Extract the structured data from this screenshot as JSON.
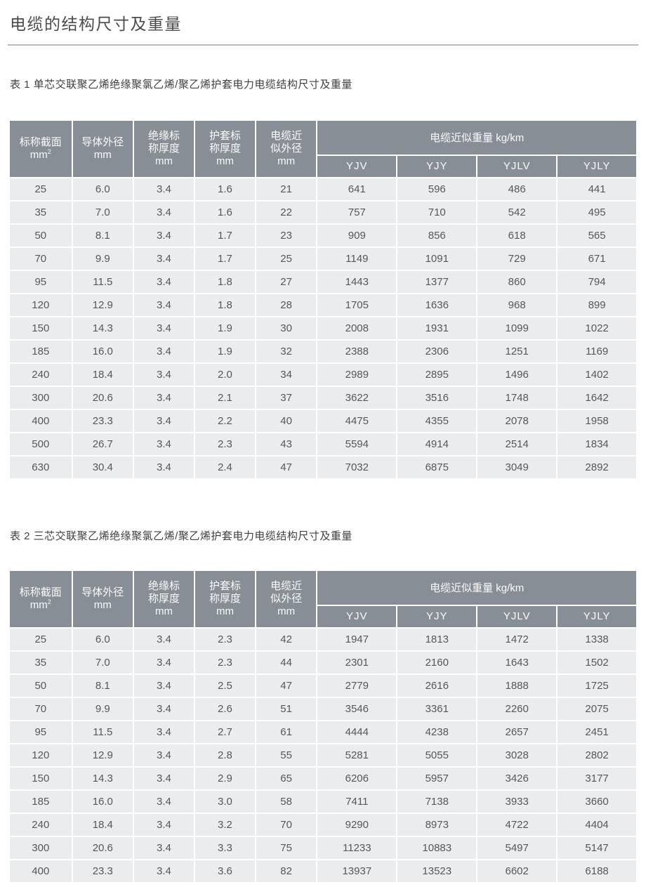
{
  "page": {
    "title": "电缆的结构尺寸及重量"
  },
  "header": {
    "cols": [
      {
        "label": "标称截面",
        "unit": "mm",
        "sup": "2"
      },
      {
        "label": "导体外径",
        "unit": "mm"
      },
      {
        "label": "绝缘标称厚度",
        "unit": "mm"
      },
      {
        "label": "护套标称厚度",
        "unit": "mm"
      },
      {
        "label": "电缆近似外径",
        "unit": "mm"
      }
    ],
    "weight_group": "电缆近似重量 kg/km",
    "weight_cols": [
      "YJV",
      "YJY",
      "YJLV",
      "YJLY"
    ]
  },
  "table1": {
    "caption": "表 1 单芯交联聚乙烯绝缘聚氯乙烯/聚乙烯护套电力电缆结构尺寸及重量",
    "rows": [
      [
        "25",
        "6.0",
        "3.4",
        "1.6",
        "21",
        "641",
        "596",
        "486",
        "441"
      ],
      [
        "35",
        "7.0",
        "3.4",
        "1.6",
        "22",
        "757",
        "710",
        "542",
        "495"
      ],
      [
        "50",
        "8.1",
        "3.4",
        "1.7",
        "23",
        "909",
        "856",
        "618",
        "565"
      ],
      [
        "70",
        "9.9",
        "3.4",
        "1.7",
        "25",
        "1149",
        "1091",
        "729",
        "671"
      ],
      [
        "95",
        "11.5",
        "3.4",
        "1.8",
        "27",
        "1443",
        "1377",
        "860",
        "794"
      ],
      [
        "120",
        "12.9",
        "3.4",
        "1.8",
        "28",
        "1705",
        "1636",
        "968",
        "899"
      ],
      [
        "150",
        "14.3",
        "3.4",
        "1.9",
        "30",
        "2008",
        "1931",
        "1099",
        "1022"
      ],
      [
        "185",
        "16.0",
        "3.4",
        "1.9",
        "32",
        "2388",
        "2306",
        "1251",
        "1169"
      ],
      [
        "240",
        "18.4",
        "3.4",
        "2.0",
        "34",
        "2989",
        "2895",
        "1496",
        "1402"
      ],
      [
        "300",
        "20.6",
        "3.4",
        "2.1",
        "37",
        "3622",
        "3516",
        "1748",
        "1642"
      ],
      [
        "400",
        "23.3",
        "3.4",
        "2.2",
        "40",
        "4475",
        "4355",
        "2078",
        "1958"
      ],
      [
        "500",
        "26.7",
        "3.4",
        "2.3",
        "43",
        "5594",
        "4914",
        "2514",
        "1834"
      ],
      [
        "630",
        "30.4",
        "3.4",
        "2.4",
        "47",
        "7032",
        "6875",
        "3049",
        "2892"
      ]
    ]
  },
  "table2": {
    "caption": "表 2 三芯交联聚乙烯绝缘聚氯乙烯/聚乙烯护套电力电缆结构尺寸及重量",
    "rows": [
      [
        "25",
        "6.0",
        "3.4",
        "2.3",
        "42",
        "1947",
        "1813",
        "1472",
        "1338"
      ],
      [
        "35",
        "7.0",
        "3.4",
        "2.3",
        "44",
        "2301",
        "2160",
        "1643",
        "1502"
      ],
      [
        "50",
        "8.1",
        "3.4",
        "2.5",
        "47",
        "2779",
        "2616",
        "1888",
        "1725"
      ],
      [
        "70",
        "9.9",
        "3.4",
        "2.6",
        "51",
        "3546",
        "3361",
        "2260",
        "2075"
      ],
      [
        "95",
        "11.5",
        "3.4",
        "2.7",
        "61",
        "4444",
        "4238",
        "2657",
        "2451"
      ],
      [
        "120",
        "12.9",
        "3.4",
        "2.8",
        "55",
        "5281",
        "5055",
        "3028",
        "2802"
      ],
      [
        "150",
        "14.3",
        "3.4",
        "2.9",
        "65",
        "6206",
        "5957",
        "3426",
        "3177"
      ],
      [
        "185",
        "16.0",
        "3.4",
        "3.0",
        "58",
        "7411",
        "7138",
        "3933",
        "3660"
      ],
      [
        "240",
        "18.4",
        "3.4",
        "3.2",
        "70",
        "9290",
        "8973",
        "4722",
        "4404"
      ],
      [
        "300",
        "20.6",
        "3.4",
        "3.3",
        "75",
        "11233",
        "10883",
        "5497",
        "5147"
      ],
      [
        "400",
        "23.3",
        "3.4",
        "3.6",
        "82",
        "13937",
        "13523",
        "6602",
        "6188"
      ]
    ]
  },
  "colors": {
    "header_bg": "#888E95",
    "row_bg": "#EBECEE",
    "header_text": "#FAFAFA",
    "body_text": "#55575B"
  }
}
